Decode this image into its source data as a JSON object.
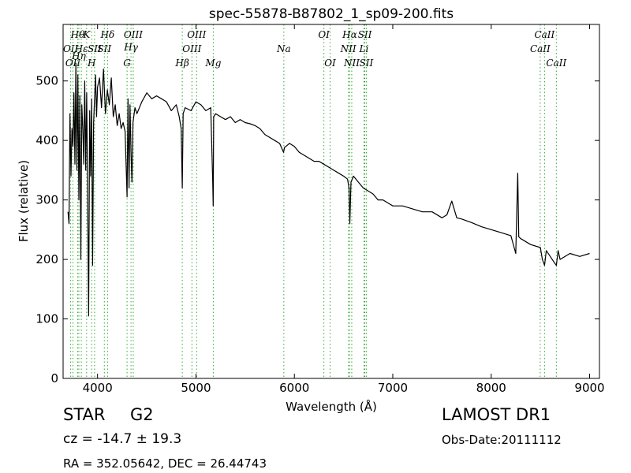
{
  "chart_data": {
    "type": "line",
    "title": "spec-55878-B87802_1_sp09-200.fits",
    "xlabel": "Wavelength (Å)",
    "ylabel": "Flux (relative)",
    "xlim": [
      3650,
      9100
    ],
    "ylim": [
      0,
      595
    ],
    "xticks": [
      4000,
      5000,
      6000,
      7000,
      8000,
      9000
    ],
    "yticks": [
      0,
      100,
      200,
      300,
      400,
      500
    ],
    "grid": false,
    "line_color": "#000000",
    "marker_color": "#33aa33",
    "series": [
      {
        "x": [
          3700,
          3710,
          3720,
          3730,
          3740,
          3750,
          3760,
          3770,
          3780,
          3790,
          3800,
          3810,
          3820,
          3830,
          3840,
          3850,
          3860,
          3870,
          3880,
          3890,
          3900,
          3910,
          3920,
          3930,
          3940,
          3950,
          3960,
          3970,
          3980,
          3990,
          4000,
          4020,
          4040,
          4060,
          4080,
          4100,
          4120,
          4140,
          4160,
          4180,
          4200,
          4220,
          4240,
          4260,
          4280,
          4300,
          4310,
          4320,
          4330,
          4340,
          4350,
          4360,
          4380,
          4400,
          4450,
          4500,
          4550,
          4600,
          4650,
          4700,
          4750,
          4800,
          4830,
          4850,
          4861,
          4870,
          4890,
          4950,
          5000,
          5050,
          5100,
          5150,
          5170,
          5175,
          5180,
          5200,
          5250,
          5300,
          5350,
          5400,
          5450,
          5500,
          5550,
          5600,
          5650,
          5700,
          5750,
          5800,
          5850,
          5890,
          5900,
          5950,
          6000,
          6050,
          6100,
          6150,
          6200,
          6250,
          6300,
          6350,
          6400,
          6450,
          6500,
          6540,
          6555,
          6563,
          6575,
          6600,
          6650,
          6700,
          6750,
          6800,
          6850,
          6900,
          6950,
          7000,
          7100,
          7200,
          7300,
          7400,
          7500,
          7550,
          7600,
          7650,
          7700,
          7800,
          7900,
          8000,
          8100,
          8200,
          8250,
          8270,
          8280,
          8300,
          8400,
          8500,
          8520,
          8542,
          8560,
          8600,
          8640,
          8662,
          8680,
          8700,
          8800,
          8900,
          9000
        ],
        "y": [
          280,
          260,
          445,
          340,
          420,
          390,
          480,
          360,
          530,
          350,
          510,
          300,
          475,
          200,
          460,
          420,
          360,
          500,
          350,
          480,
          300,
          105,
          450,
          340,
          470,
          190,
          430,
          470,
          510,
          440,
          490,
          505,
          455,
          520,
          445,
          485,
          460,
          505,
          440,
          460,
          425,
          445,
          420,
          430,
          415,
          305,
          470,
          320,
          460,
          380,
          330,
          430,
          455,
          445,
          465,
          480,
          470,
          475,
          470,
          465,
          450,
          460,
          440,
          420,
          320,
          445,
          455,
          450,
          465,
          460,
          450,
          455,
          330,
          290,
          440,
          445,
          440,
          435,
          440,
          430,
          435,
          430,
          428,
          425,
          420,
          410,
          405,
          400,
          395,
          380,
          388,
          395,
          390,
          380,
          375,
          370,
          365,
          365,
          360,
          355,
          350,
          345,
          340,
          335,
          320,
          260,
          330,
          340,
          330,
          320,
          315,
          310,
          300,
          300,
          295,
          290,
          290,
          285,
          280,
          280,
          270,
          275,
          298,
          270,
          268,
          262,
          255,
          250,
          245,
          240,
          210,
          345,
          238,
          235,
          225,
          220,
          200,
          190,
          215,
          205,
          195,
          190,
          215,
          200,
          210,
          205,
          210
        ]
      }
    ],
    "line_markers": [
      {
        "wl": 3727,
        "label": "OII",
        "row": 1
      },
      {
        "wl": 3750,
        "label": "OII",
        "row": 2
      },
      {
        "wl": 3798,
        "label": "Hθ",
        "row": 0
      },
      {
        "wl": 3810,
        "label": "Hη",
        "row": 1.5
      },
      {
        "wl": 3835,
        "label": "Hε",
        "row": 1
      },
      {
        "wl": 3889,
        "label": "K",
        "row": 0
      },
      {
        "wl": 3940,
        "label": "H",
        "row": 2
      },
      {
        "wl": 3970,
        "label": "SII",
        "row": 1
      },
      {
        "wl": 4069,
        "label": "SII",
        "row": 1
      },
      {
        "wl": 4102,
        "label": "Hδ",
        "row": 0
      },
      {
        "wl": 4300,
        "label": "G",
        "row": 2
      },
      {
        "wl": 4340,
        "label": "Hγ",
        "row": 0.9
      },
      {
        "wl": 4363,
        "label": "OIII",
        "row": 0
      },
      {
        "wl": 4861,
        "label": "Hβ",
        "row": 2
      },
      {
        "wl": 4959,
        "label": "OIII",
        "row": 1
      },
      {
        "wl": 5007,
        "label": "OIII",
        "row": 0
      },
      {
        "wl": 5176,
        "label": "Mg",
        "row": 2
      },
      {
        "wl": 5893,
        "label": "Na",
        "row": 1
      },
      {
        "wl": 6300,
        "label": "OI",
        "row": 0
      },
      {
        "wl": 6363,
        "label": "OI",
        "row": 2
      },
      {
        "wl": 6548,
        "label": "NII",
        "row": 1
      },
      {
        "wl": 6563,
        "label": "Hα",
        "row": 0
      },
      {
        "wl": 6583,
        "label": "NII",
        "row": 2
      },
      {
        "wl": 6707,
        "label": "Li",
        "row": 1
      },
      {
        "wl": 6716,
        "label": "SII",
        "row": 0
      },
      {
        "wl": 6731,
        "label": "SII",
        "row": 2
      },
      {
        "wl": 8498,
        "label": "CaII",
        "row": 1
      },
      {
        "wl": 8542,
        "label": "CaII",
        "row": 0
      },
      {
        "wl": 8662,
        "label": "CaII",
        "row": 2
      }
    ]
  },
  "info": {
    "obj_class": "STAR",
    "obj_subclass": "G2",
    "survey": "LAMOST DR1",
    "cz": "cz = -14.7  ± 19.3",
    "obs_date": "Obs-Date:20111112",
    "radec": "RA = 352.05642, DEC = 26.44743"
  }
}
